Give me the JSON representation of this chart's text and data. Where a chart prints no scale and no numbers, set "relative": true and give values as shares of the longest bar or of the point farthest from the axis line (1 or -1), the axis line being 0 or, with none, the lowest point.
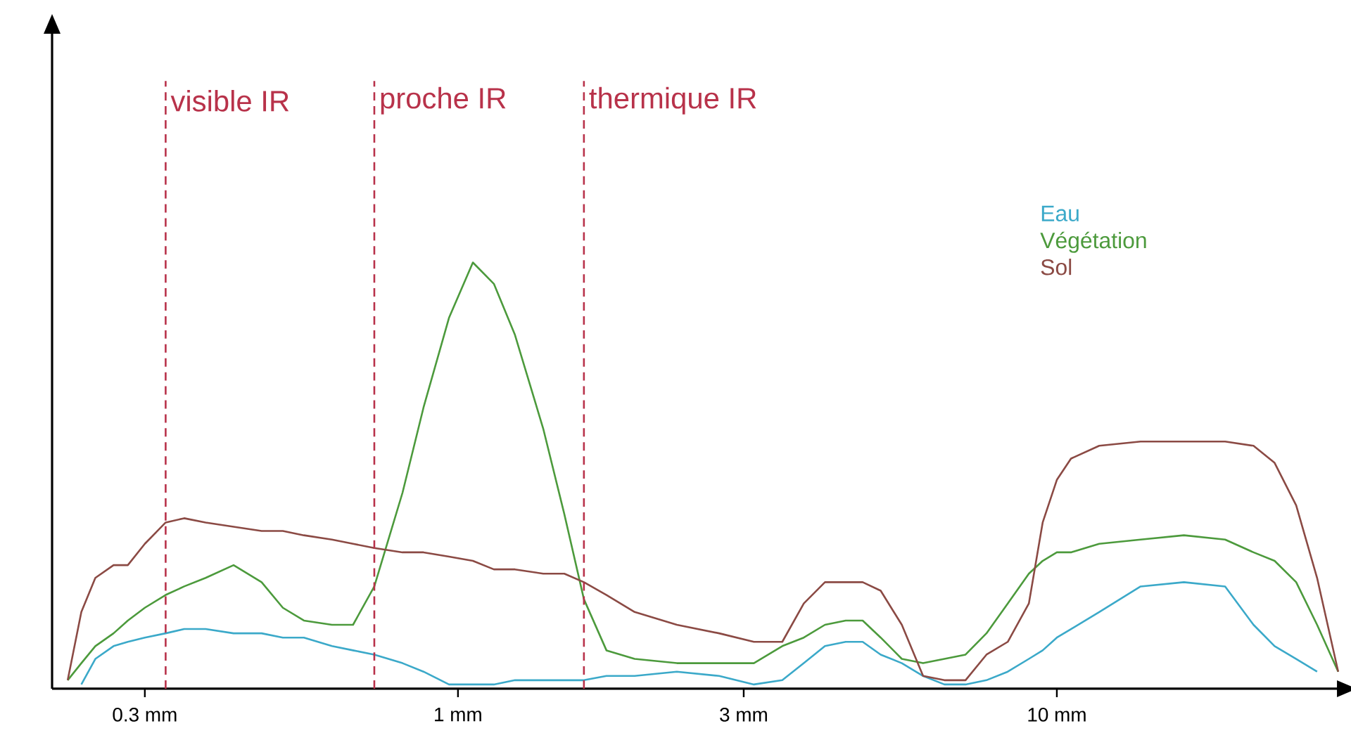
{
  "chart_data": {
    "type": "line",
    "relative": true,
    "log": "x",
    "xlim": [
      0.21,
      30
    ],
    "xticks": [
      {
        "value": 0.3,
        "label": "0.3 mm"
      },
      {
        "value": 1,
        "label": "1 mm"
      },
      {
        "value": 3,
        "label": "3 mm"
      },
      {
        "value": 10,
        "label": "10 mm"
      }
    ],
    "x": [
      0.223,
      0.235,
      0.248,
      0.266,
      0.281,
      0.3,
      0.325,
      0.349,
      0.379,
      0.422,
      0.47,
      0.51,
      0.553,
      0.616,
      0.668,
      0.725,
      0.808,
      0.876,
      0.966,
      1.059,
      1.148,
      1.245,
      1.388,
      1.505,
      1.623,
      1.77,
      1.973,
      2.32,
      2.73,
      3.12,
      3.48,
      3.78,
      4.1,
      4.44,
      4.74,
      5.08,
      5.51,
      5.98,
      6.49,
      7.04,
      7.63,
      8.28,
      8.98,
      9.47,
      10.0,
      10.56,
      11.77,
      13.8,
      16.3,
      19.1,
      21.3,
      23.1,
      25.1,
      27.2,
      29.5
    ],
    "series": [
      {
        "name": "Eau",
        "color": "#3ba9c9",
        "values": [
          null,
          0.01,
          0.07,
          0.1,
          0.11,
          0.12,
          0.13,
          0.14,
          0.14,
          0.13,
          0.13,
          0.12,
          0.12,
          0.1,
          0.09,
          0.08,
          0.06,
          0.04,
          0.01,
          0.01,
          0.01,
          0.02,
          0.02,
          0.02,
          0.02,
          0.03,
          0.03,
          0.04,
          0.03,
          0.01,
          0.02,
          0.06,
          0.1,
          0.11,
          0.11,
          0.08,
          0.06,
          0.03,
          0.01,
          0.01,
          0.02,
          0.04,
          0.07,
          0.09,
          0.12,
          0.14,
          0.18,
          0.24,
          0.25,
          0.24,
          0.15,
          0.1,
          0.07,
          0.04,
          null
        ]
      },
      {
        "name": "Végétation",
        "color": "#4c9a3c",
        "values": [
          0.02,
          0.06,
          0.1,
          0.13,
          0.16,
          0.19,
          0.22,
          0.24,
          0.26,
          0.29,
          0.25,
          0.19,
          0.16,
          0.15,
          0.15,
          0.24,
          0.46,
          0.66,
          0.87,
          1,
          0.95,
          0.83,
          0.61,
          0.41,
          0.21,
          0.09,
          0.07,
          0.06,
          0.06,
          0.06,
          0.1,
          0.12,
          0.15,
          0.16,
          0.16,
          0.12,
          0.07,
          0.06,
          0.07,
          0.08,
          0.13,
          0.2,
          0.27,
          0.3,
          0.32,
          0.32,
          0.34,
          0.35,
          0.36,
          0.35,
          0.32,
          0.3,
          0.25,
          0.15,
          0.04
        ]
      },
      {
        "name": "Sol",
        "color": "#8b4a44",
        "values": [
          0.02,
          0.18,
          0.26,
          0.29,
          0.29,
          0.34,
          0.39,
          0.4,
          0.39,
          0.38,
          0.37,
          0.37,
          0.36,
          0.35,
          0.34,
          0.33,
          0.32,
          0.32,
          0.31,
          0.3,
          0.28,
          0.28,
          0.27,
          0.27,
          0.25,
          0.22,
          0.18,
          0.15,
          0.13,
          0.11,
          0.11,
          0.2,
          0.25,
          0.25,
          0.25,
          0.23,
          0.15,
          0.03,
          0.02,
          0.02,
          0.08,
          0.11,
          0.2,
          0.39,
          0.49,
          0.54,
          0.57,
          0.58,
          0.58,
          0.58,
          0.57,
          0.53,
          0.43,
          0.26,
          0.04
        ]
      }
    ],
    "ref_lines": [
      {
        "axis": "x",
        "value": 0.325,
        "label": "visible IR",
        "color": "#b8324a",
        "line_style": "dashed"
      },
      {
        "axis": "x",
        "value": 0.725,
        "label": "proche IR",
        "color": "#b8324a",
        "line_style": "dashed"
      },
      {
        "axis": "x",
        "value": 1.623,
        "label": "thermique IR",
        "color": "#b8324a",
        "line_style": "dashed"
      }
    ],
    "legend": "right",
    "marker": "none",
    "line_style": "solid"
  }
}
